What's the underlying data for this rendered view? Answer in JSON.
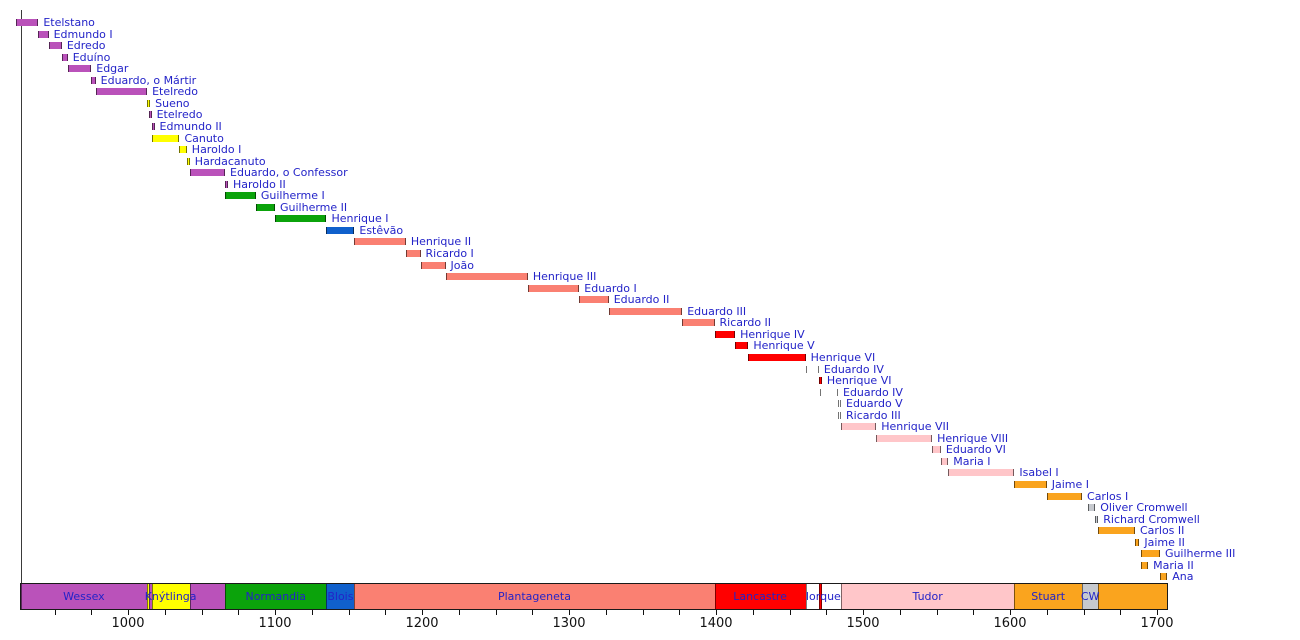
{
  "chart_data": {
    "type": "timeline",
    "description": "Timeline of English monarchs (labels in Portuguese) with dynasty band along the bottom axis",
    "axis": {
      "year_start": 927,
      "year_end": 1707,
      "major_ticks": [
        1000,
        1100,
        1200,
        1300,
        1400,
        1500,
        1600,
        1700
      ],
      "minor_tick_start": 950,
      "minor_tick_increment": 25
    },
    "colors": {
      "wessex": "#BA52BA",
      "knytlinga": "#FFFF00",
      "normandia": "#0BA30B",
      "blois": "#1060CC",
      "plantageneta": "#FA8072",
      "lancastre": "#FF0000",
      "iorque": "#FFFFFF",
      "tudor": "#FFC6C9",
      "stuart": "#FAA41E",
      "cw": "#C6C9CE",
      "bar_edge": "rgba(0,0,0,0.55)",
      "band_border": "#1A1A1A",
      "label_text": "#2323C8",
      "tick_text": "#111111",
      "axis_line": "#3A3A3A"
    },
    "reigns": [
      {
        "label": "Etelstano",
        "from": 924,
        "till": 939,
        "house": "wessex"
      },
      {
        "label": "Edmundo I",
        "from": 939,
        "till": 946,
        "house": "wessex"
      },
      {
        "label": "Edredo",
        "from": 946,
        "till": 955,
        "house": "wessex"
      },
      {
        "label": "Eduíno",
        "from": 955,
        "till": 959,
        "house": "wessex"
      },
      {
        "label": "Edgar",
        "from": 959,
        "till": 975,
        "house": "wessex"
      },
      {
        "label": "Eduardo, o Mártir",
        "from": 975,
        "till": 978,
        "house": "wessex"
      },
      {
        "label": "Etelredo",
        "from": 978,
        "till": 1013,
        "house": "wessex"
      },
      {
        "label": "Sueno",
        "from": 1013,
        "till": 1014,
        "house": "knytlinga"
      },
      {
        "label": "Etelredo",
        "from": 1014,
        "till": 1016,
        "house": "wessex"
      },
      {
        "label": "Edmundo II",
        "from": 1016,
        "till": 1016,
        "house": "wessex"
      },
      {
        "label": "Canuto",
        "from": 1016,
        "till": 1035,
        "house": "knytlinga"
      },
      {
        "label": "Haroldo I",
        "from": 1035,
        "till": 1040,
        "house": "knytlinga"
      },
      {
        "label": "Hardacanuto",
        "from": 1040,
        "till": 1042,
        "house": "knytlinga"
      },
      {
        "label": "Eduardo, o Confessor",
        "from": 1042,
        "till": 1066,
        "house": "wessex"
      },
      {
        "label": "Haroldo II",
        "from": 1066,
        "till": 1066,
        "house": "wessex"
      },
      {
        "label": "Guilherme I",
        "from": 1066,
        "till": 1087,
        "house": "normandia"
      },
      {
        "label": "Guilherme II",
        "from": 1087,
        "till": 1100,
        "house": "normandia"
      },
      {
        "label": "Henrique I",
        "from": 1100,
        "till": 1135,
        "house": "normandia"
      },
      {
        "label": "Estêvão",
        "from": 1135,
        "till": 1154,
        "house": "blois"
      },
      {
        "label": "Henrique II",
        "from": 1154,
        "till": 1189,
        "house": "plantageneta"
      },
      {
        "label": "Ricardo I",
        "from": 1189,
        "till": 1199,
        "house": "plantageneta"
      },
      {
        "label": "João",
        "from": 1199,
        "till": 1216,
        "house": "plantageneta"
      },
      {
        "label": "Henrique III",
        "from": 1216,
        "till": 1272,
        "house": "plantageneta"
      },
      {
        "label": "Eduardo I",
        "from": 1272,
        "till": 1307,
        "house": "plantageneta"
      },
      {
        "label": "Eduardo II",
        "from": 1307,
        "till": 1327,
        "house": "plantageneta"
      },
      {
        "label": "Eduardo III",
        "from": 1327,
        "till": 1377,
        "house": "plantageneta"
      },
      {
        "label": "Ricardo II",
        "from": 1377,
        "till": 1399,
        "house": "plantageneta"
      },
      {
        "label": "Henrique IV",
        "from": 1399,
        "till": 1413,
        "house": "lancastre"
      },
      {
        "label": "Henrique V",
        "from": 1413,
        "till": 1422,
        "house": "lancastre"
      },
      {
        "label": "Henrique VI",
        "from": 1422,
        "till": 1461,
        "house": "lancastre"
      },
      {
        "label": "Eduardo IV",
        "from": 1461,
        "till": 1470,
        "house": "iorque"
      },
      {
        "label": "Henrique VI",
        "from": 1470,
        "till": 1471,
        "house": "lancastre"
      },
      {
        "label": "Eduardo IV",
        "from": 1471,
        "till": 1483,
        "house": "iorque"
      },
      {
        "label": "Eduardo V",
        "from": 1483,
        "till": 1483,
        "house": "iorque"
      },
      {
        "label": "Ricardo III",
        "from": 1483,
        "till": 1485,
        "house": "iorque"
      },
      {
        "label": "Henrique VII",
        "from": 1485,
        "till": 1509,
        "house": "tudor"
      },
      {
        "label": "Henrique VIII",
        "from": 1509,
        "till": 1547,
        "house": "tudor"
      },
      {
        "label": "Eduardo VI",
        "from": 1547,
        "till": 1553,
        "house": "tudor"
      },
      {
        "label": "Maria I",
        "from": 1553,
        "till": 1558,
        "house": "tudor"
      },
      {
        "label": "Isabel I",
        "from": 1558,
        "till": 1603,
        "house": "tudor"
      },
      {
        "label": "Jaime I",
        "from": 1603,
        "till": 1625,
        "house": "stuart"
      },
      {
        "label": "Carlos I",
        "from": 1625,
        "till": 1649,
        "house": "stuart"
      },
      {
        "label": "Oliver Cromwell",
        "from": 1653,
        "till": 1658,
        "house": "cw"
      },
      {
        "label": "Richard Cromwell",
        "from": 1658,
        "till": 1659,
        "house": "cw"
      },
      {
        "label": "Carlos II",
        "from": 1660,
        "till": 1685,
        "house": "stuart"
      },
      {
        "label": "Jaime II",
        "from": 1685,
        "till": 1688,
        "house": "stuart"
      },
      {
        "label": "Guilherme III",
        "from": 1689,
        "till": 1702,
        "house": "stuart"
      },
      {
        "label": "Maria II",
        "from": 1689,
        "till": 1694,
        "house": "stuart"
      },
      {
        "label": "Ana",
        "from": 1702,
        "till": 1707,
        "house": "stuart"
      }
    ],
    "dynasty_band": [
      {
        "label": "Wessex",
        "from": 927,
        "till": 1013,
        "house": "wessex"
      },
      {
        "label": "",
        "from": 1013,
        "till": 1014,
        "house": "knytlinga"
      },
      {
        "label": "",
        "from": 1014,
        "till": 1016,
        "house": "wessex"
      },
      {
        "label": "Knýtlinga",
        "from": 1016,
        "till": 1042,
        "house": "knytlinga"
      },
      {
        "label": "",
        "from": 1042,
        "till": 1066,
        "house": "wessex"
      },
      {
        "label": "Normandia",
        "from": 1066,
        "till": 1135,
        "house": "normandia"
      },
      {
        "label": "Blois",
        "from": 1135,
        "till": 1154,
        "house": "blois"
      },
      {
        "label": "Plantageneta",
        "from": 1154,
        "till": 1399,
        "house": "plantageneta"
      },
      {
        "label": "Lancastre",
        "from": 1399,
        "till": 1461,
        "house": "lancastre"
      },
      {
        "label": "Iorque",
        "from": 1461,
        "till": 1485,
        "house": "iorque",
        "overlay": {
          "from": 1470,
          "till": 1471,
          "house": "lancastre"
        }
      },
      {
        "label": "Tudor",
        "from": 1485,
        "till": 1603,
        "house": "tudor"
      },
      {
        "label": "Stuart",
        "from": 1603,
        "till": 1649,
        "house": "stuart"
      },
      {
        "label": "CW",
        "from": 1649,
        "till": 1660,
        "house": "cw"
      },
      {
        "label": "",
        "from": 1660,
        "till": 1707,
        "house": "stuart"
      }
    ]
  }
}
